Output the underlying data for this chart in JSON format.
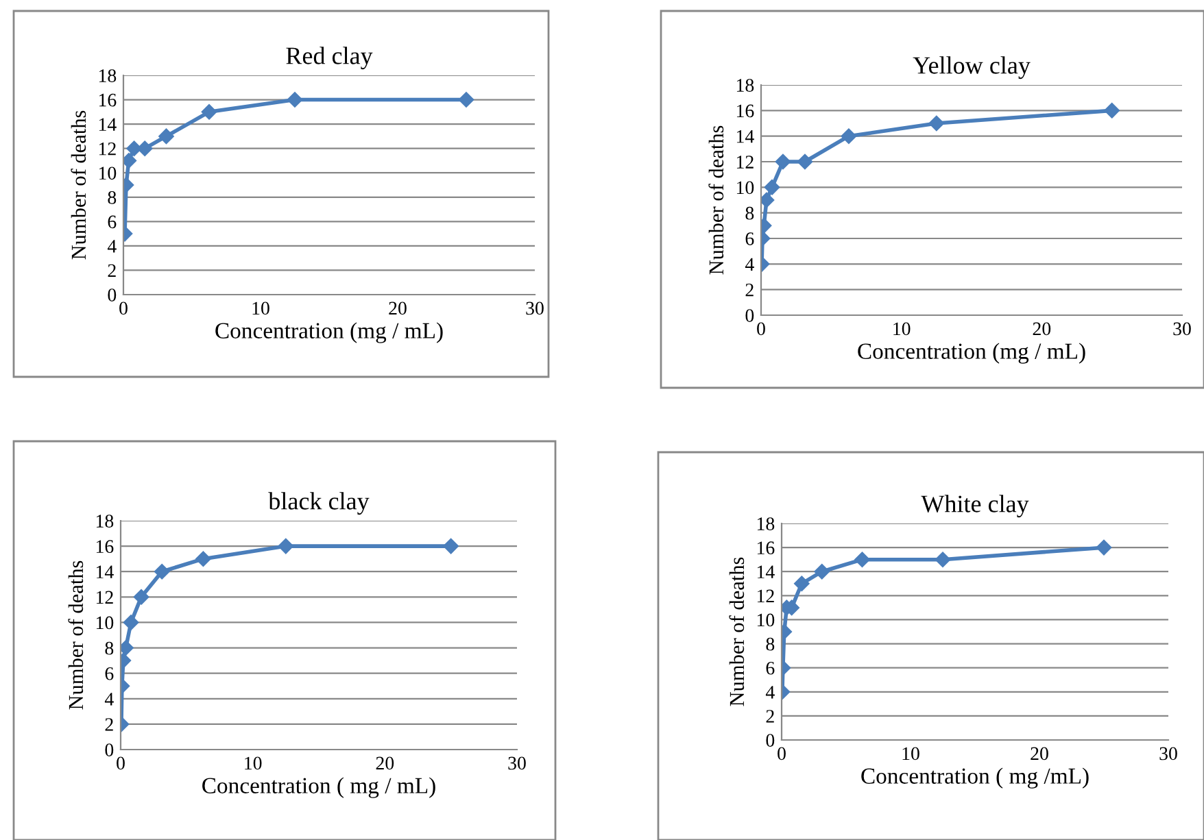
{
  "chart_data": [
    {
      "type": "line",
      "title": "Red clay",
      "xlabel": "Concentration (mg / mL)",
      "ylabel": "Number of deaths",
      "x": [
        0.1,
        0.2,
        0.39,
        0.78,
        1.56,
        3.125,
        6.25,
        12.5,
        25
      ],
      "series": [
        {
          "color": "#4a7ebb",
          "values": [
            5,
            9,
            11,
            12,
            12,
            13,
            15,
            16,
            16
          ]
        }
      ],
      "xlim": [
        0,
        30
      ],
      "xticks": [
        0,
        10,
        20,
        30
      ],
      "ylim": [
        0,
        18
      ],
      "yticks": [
        0,
        2,
        4,
        6,
        8,
        10,
        12,
        14,
        16,
        18
      ],
      "grid": "y",
      "marker": "diamond",
      "line_style": "solid"
    },
    {
      "type": "line",
      "title": "Yellow clay",
      "xlabel": "Concentration (mg / mL)",
      "ylabel": "Number of deaths",
      "x": [
        0.05,
        0.1,
        0.2,
        0.39,
        0.78,
        1.56,
        3.125,
        6.25,
        12.5,
        25
      ],
      "series": [
        {
          "color": "#4a7ebb",
          "values": [
            4,
            6,
            7,
            9,
            10,
            12,
            12,
            14,
            15,
            16
          ]
        }
      ],
      "xlim": [
        0,
        30
      ],
      "xticks": [
        0,
        10,
        20,
        30
      ],
      "ylim": [
        0,
        18
      ],
      "yticks": [
        0,
        2,
        4,
        6,
        8,
        10,
        12,
        14,
        16,
        18
      ],
      "grid": "y",
      "marker": "diamond",
      "line_style": "solid"
    },
    {
      "type": "line",
      "title": "black clay",
      "xlabel": "Concentration ( mg / mL)",
      "ylabel": "Number of deaths",
      "x": [
        0.05,
        0.1,
        0.2,
        0.39,
        0.78,
        1.56,
        3.125,
        6.25,
        12.5,
        25
      ],
      "series": [
        {
          "color": "#4a7ebb",
          "values": [
            2,
            5,
            7,
            8,
            10,
            12,
            14,
            15,
            16,
            16
          ]
        }
      ],
      "xlim": [
        0,
        30
      ],
      "xticks": [
        0,
        10,
        20,
        30
      ],
      "ylim": [
        0,
        18
      ],
      "yticks": [
        0,
        2,
        4,
        6,
        8,
        10,
        12,
        14,
        16,
        18
      ],
      "grid": "y",
      "marker": "diamond",
      "line_style": "solid"
    },
    {
      "type": "line",
      "title": "White clay",
      "xlabel": "Concentration ( mg /mL)",
      "ylabel": "Number of deaths",
      "x": [
        0.05,
        0.1,
        0.2,
        0.39,
        0.78,
        1.56,
        3.125,
        6.25,
        12.5,
        25
      ],
      "series": [
        {
          "color": "#4a7ebb",
          "values": [
            4,
            6,
            9,
            11,
            11,
            13,
            14,
            15,
            15,
            16
          ]
        }
      ],
      "xlim": [
        0,
        30
      ],
      "xticks": [
        0,
        10,
        20,
        30
      ],
      "ylim": [
        0,
        18
      ],
      "yticks": [
        0,
        2,
        4,
        6,
        8,
        10,
        12,
        14,
        16,
        18
      ],
      "grid": "y",
      "marker": "diamond",
      "line_style": "solid"
    }
  ]
}
